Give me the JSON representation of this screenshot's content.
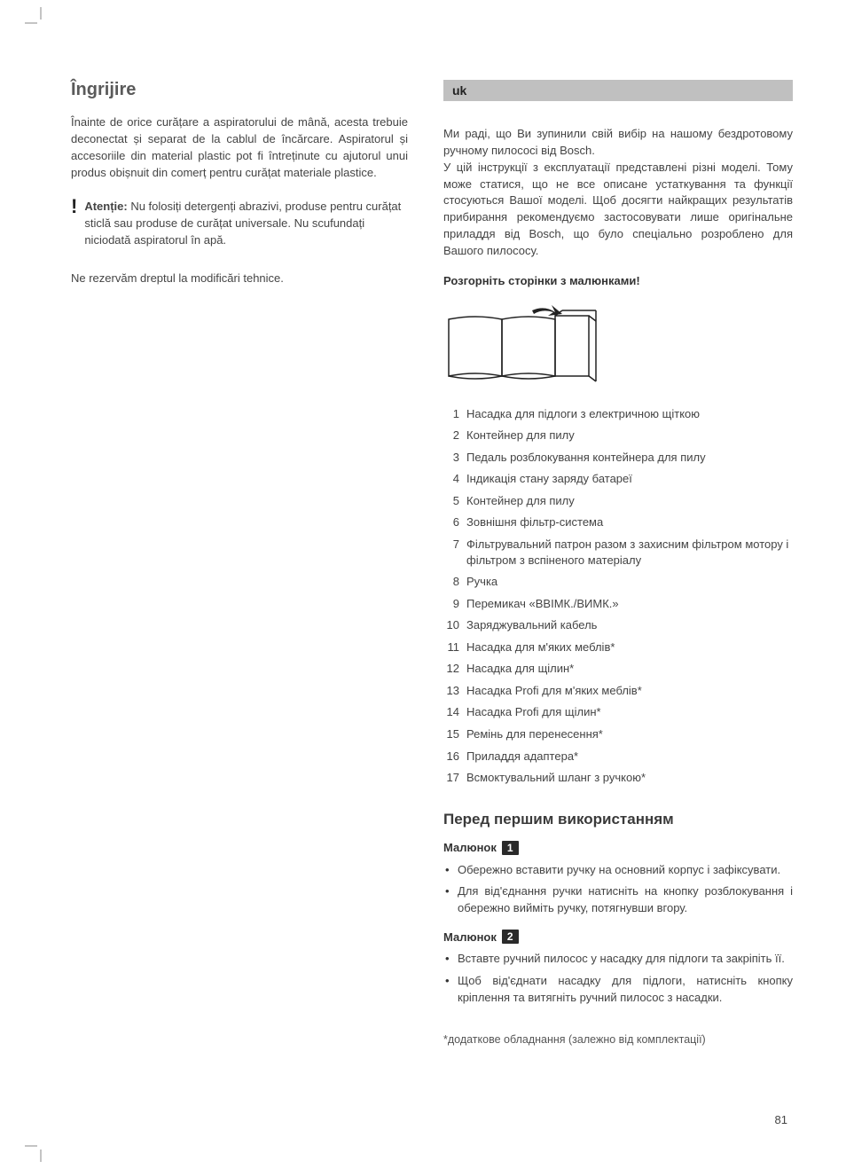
{
  "left": {
    "heading": "Îngrijire",
    "intro": "Înainte de orice curățare a aspiratorului de mână, acesta trebuie deconectat și separat de la cablul de încărcare. Aspiratorul și accesoriile din material plastic pot fi întreținute cu ajutorul unui produs obișnuit din comerț pentru curățat materiale plastice.",
    "warning_label": "Atenție:",
    "warning_body": " Nu folosiți detergenți abrazivi, produse pentru curățat sticlă sau produse de curățat universale. Nu scufundați niciodată aspiratorul în apă.",
    "disclaimer": "Ne rezervăm dreptul la modificări tehnice."
  },
  "right": {
    "lang_code": "uk",
    "intro": "Ми раді, що Ви зупинили свій вибір на нашому бездротовому ручному пилососі від Bosch.\nУ цій інструкції з експлуатації представлені різні моделі. Тому може статися, що не все описане устаткування та функції стосуються Вашої моделі. Щоб досягти найкращих результатів прибирання рекомендуємо застосовувати лише оригінальне приладдя від Bosch, що було спеціально розроблено для Вашого пилососу.",
    "unfold_line": "Розгорніть сторінки з малюнками!",
    "parts": [
      {
        "n": "1",
        "t": "Насадка для підлоги з електричною щіткою"
      },
      {
        "n": "2",
        "t": "Контейнер для пилу"
      },
      {
        "n": "3",
        "t": "Педаль розблокування контейнера для пилу"
      },
      {
        "n": "4",
        "t": "Індикація стану заряду батареї"
      },
      {
        "n": "5",
        "t": "Контейнер для пилу"
      },
      {
        "n": "6",
        "t": "Зовнішня фільтр-система"
      },
      {
        "n": "7",
        "t": "Фільтрувальний патрон разом з захисним фільтром мотору і фільтром з вспіненого матеріалу"
      },
      {
        "n": "8",
        "t": "Ручка"
      },
      {
        "n": "9",
        "t": "Перемикач «ВВІМК./ВИМК.»"
      },
      {
        "n": "10",
        "t": "Заряджувальний кабель"
      },
      {
        "n": "11",
        "t": "Насадка для м'яких меблів*"
      },
      {
        "n": "12",
        "t": "Насадка для щілин*"
      },
      {
        "n": "13",
        "t": "Насадка Profi для м'яких меблів*"
      },
      {
        "n": "14",
        "t": "Насадка Profi для щілин*"
      },
      {
        "n": "15",
        "t": "Ремінь для перенесення*"
      },
      {
        "n": "16",
        "t": "Приладдя адаптера*"
      },
      {
        "n": "17",
        "t": "Всмоктувальний шланг з ручкою*"
      }
    ],
    "before_use_heading": "Перед першим використанням",
    "fig_label": "Малюнок",
    "fig1_num": "1",
    "fig1_bullets": [
      "Обережно вставити ручку на основний корпус і зафіксувати.",
      "Для від'єднання ручки натисніть на кнопку розблокування і обережно вийміть ручку, потягнувши вгору."
    ],
    "fig2_num": "2",
    "fig2_bullets": [
      "Вставте ручний пилосос у насадку для підлоги та закріпіть її.",
      "Щоб від'єднати насадку для підлоги, натисніть кнопку кріплення та витягніть ручний пилосос з насадки."
    ],
    "footnote": "*додаткове обладнання (залежно від комплектації)"
  },
  "page_number": "81",
  "colors": {
    "badge_bg": "#c0c0c0",
    "fig_num_bg": "#2a2a2a",
    "text": "#444444",
    "heading": "#5a5a5a"
  }
}
